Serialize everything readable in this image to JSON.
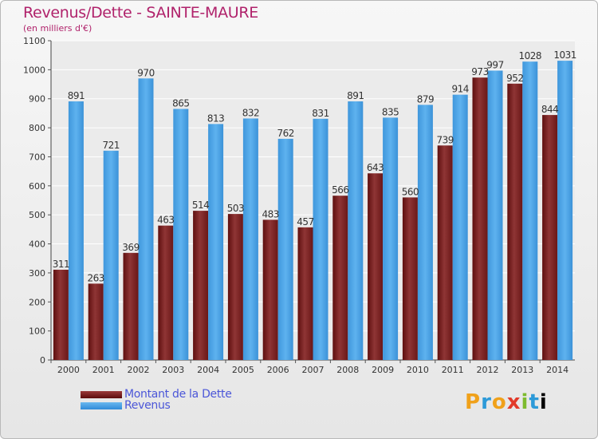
{
  "title": "Revenus/Dette - SAINTE-MAURE",
  "subtitle": "(en milliers d'€)",
  "logo": [
    "P",
    "r",
    "o",
    "x",
    "i",
    "t",
    "i"
  ],
  "chart_data": {
    "type": "bar",
    "categories": [
      "2000",
      "2001",
      "2002",
      "2003",
      "2004",
      "2005",
      "2006",
      "2007",
      "2008",
      "2009",
      "2010",
      "2011",
      "2012",
      "2013",
      "2014"
    ],
    "series": [
      {
        "name": "Montant de la Dette",
        "color": "#7a1f1f",
        "values": [
          311,
          263,
          369,
          463,
          514,
          503,
          483,
          457,
          566,
          643,
          560,
          739,
          973,
          952,
          844
        ]
      },
      {
        "name": "Revenus",
        "color": "#4aa3e8",
        "values": [
          891,
          721,
          970,
          865,
          813,
          832,
          762,
          831,
          891,
          835,
          879,
          914,
          997,
          1028,
          1031
        ]
      }
    ],
    "yticks": [
      0,
      100,
      200,
      300,
      400,
      500,
      600,
      700,
      800,
      900,
      1000,
      1100
    ],
    "ylim": [
      0,
      1100
    ],
    "grid": true,
    "legend": "bottom-left"
  }
}
